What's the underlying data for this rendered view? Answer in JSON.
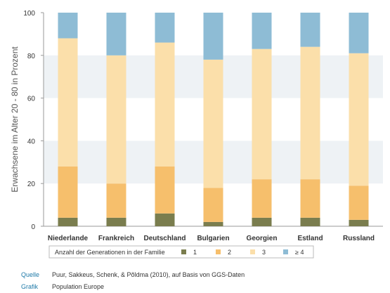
{
  "chart_data": {
    "type": "bar",
    "stacked": true,
    "categories": [
      "Niederlande",
      "Frankreich",
      "Deutschland",
      "Bulgarien",
      "Georgien",
      "Estland",
      "Russland"
    ],
    "series": [
      {
        "name": "1",
        "color": "#7a7d4e",
        "values": [
          4,
          4,
          6,
          2,
          4,
          4,
          3
        ]
      },
      {
        "name": "2",
        "color": "#f6bf6c",
        "values": [
          24,
          16,
          22,
          16,
          18,
          18,
          16
        ]
      },
      {
        "name": "3",
        "color": "#fbdfaa",
        "values": [
          60,
          60,
          58,
          60,
          61,
          62,
          62
        ]
      },
      {
        "name": "≥ 4",
        "color": "#8ebcd5",
        "values": [
          12,
          20,
          14,
          22,
          17,
          16,
          19
        ]
      }
    ],
    "ylabel": "Erwachsene im Alter 20 - 80 in Prozent",
    "ylim": [
      0,
      100
    ],
    "yticks": [
      0,
      20,
      40,
      60,
      80,
      100
    ],
    "grid": true,
    "legend_title": "Anzahl der Generationen in der Familie",
    "legend_position": "bottom"
  },
  "credits": [
    {
      "key": "Quelle",
      "value": "Puur, Sakkeus, Schenk, & Põldma (2010), auf Basis von GGS-Daten"
    },
    {
      "key": "Grafik",
      "value": "Population Europe"
    }
  ]
}
